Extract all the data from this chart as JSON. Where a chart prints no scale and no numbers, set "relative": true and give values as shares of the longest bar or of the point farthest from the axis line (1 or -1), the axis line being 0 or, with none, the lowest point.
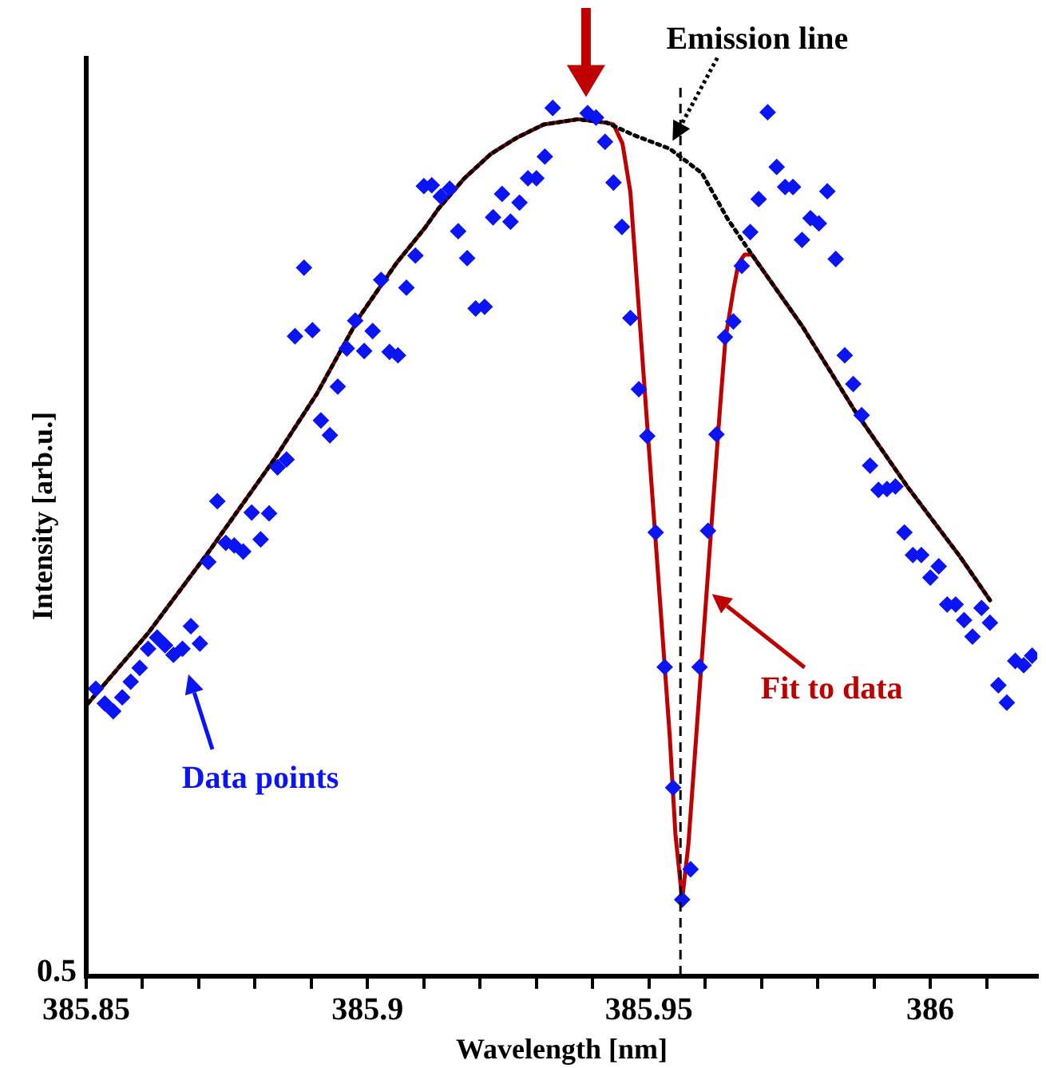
{
  "chart_data": {
    "type": "scatter",
    "xlabel": "Wavelength [nm]",
    "ylabel": "Intensity [arb.u.]",
    "relative": true,
    "xlim": [
      385.85,
      386.019
    ],
    "xticks": [
      385.85,
      {
        "value": 385.86,
        "label": null
      },
      {
        "value": 385.87,
        "label": null
      },
      {
        "value": 385.88,
        "label": null
      },
      {
        "value": 385.89,
        "label": null
      },
      385.9,
      {
        "value": 385.91,
        "label": null
      },
      {
        "value": 385.92,
        "label": null
      },
      {
        "value": 385.93,
        "label": null
      },
      {
        "value": 385.94,
        "label": null
      },
      385.95,
      {
        "value": 385.96,
        "label": null
      },
      {
        "value": 385.97,
        "label": null
      },
      {
        "value": 385.98,
        "label": null
      },
      {
        "value": 385.99,
        "label": null
      },
      386,
      {
        "value": 386.01,
        "label": null
      }
    ],
    "series": [
      {
        "color": "#0a14f5",
        "marker": "diamond",
        "x": [
          385.8517,
          385.8533,
          385.8548,
          385.8564,
          385.8579,
          385.8595,
          385.861,
          385.8626,
          385.864,
          385.8655,
          385.8671,
          385.8686,
          385.8702,
          385.8717,
          385.8733,
          385.8748,
          385.8763,
          385.8779,
          385.8794,
          385.881,
          385.8825,
          385.884,
          385.8856,
          385.8871,
          385.8887,
          385.8902,
          385.8917,
          385.8933,
          385.8947,
          385.8963,
          385.8978,
          385.8994,
          385.9009,
          385.9024,
          385.9039,
          385.9054,
          385.9069,
          385.9085,
          385.91,
          385.9114,
          385.913,
          385.9146,
          385.9161,
          385.9177,
          385.9192,
          385.9208,
          385.9223,
          385.9239,
          385.9254,
          385.927,
          385.9285,
          385.93,
          385.9315,
          385.9329,
          385.9391,
          385.9406,
          385.9422,
          385.9437,
          385.9452,
          385.9467,
          385.9482,
          385.9497,
          385.9512,
          385.9528,
          385.9543,
          385.9559,
          385.9574,
          385.959,
          385.9605,
          385.962,
          385.9635,
          385.965,
          385.9665,
          385.968,
          385.9695,
          385.9711,
          385.9727,
          385.9742,
          385.9756,
          385.9772,
          385.9787,
          385.9802,
          385.9817,
          385.9832,
          385.9848,
          385.9863,
          385.9878,
          385.9893,
          385.9908,
          385.9923,
          385.9938,
          385.9954,
          385.9969,
          385.9984,
          386.0,
          386.0015,
          386.003,
          386.0045,
          386.006,
          386.0075,
          386.0091,
          386.0106,
          386.0121,
          386.0136,
          386.0151,
          386.0166,
          386.0181
        ],
        "values": [
          0.331,
          0.314,
          0.305,
          0.321,
          0.339,
          0.355,
          0.377,
          0.39,
          0.381,
          0.37,
          0.377,
          0.403,
          0.383,
          0.477,
          0.547,
          0.499,
          0.496,
          0.489,
          0.534,
          0.503,
          0.533,
          0.586,
          0.595,
          0.737,
          0.816,
          0.744,
          0.64,
          0.623,
          0.679,
          0.723,
          0.755,
          0.72,
          0.743,
          0.802,
          0.719,
          0.715,
          0.793,
          0.83,
          0.91,
          0.911,
          0.898,
          0.907,
          0.858,
          0.827,
          0.769,
          0.771,
          0.874,
          0.901,
          0.869,
          0.891,
          0.919,
          0.919,
          0.944,
          1,
          0.994,
          0.989,
          0.961,
          0.914,
          0.863,
          0.758,
          0.676,
          0.622,
          0.511,
          0.356,
          0.217,
          0.088,
          0.123,
          0.356,
          0.513,
          0.624,
          0.736,
          0.754,
          0.818,
          0.857,
          0.895,
          0.995,
          0.932,
          0.909,
          0.909,
          0.848,
          0.873,
          0.867,
          0.904,
          0.826,
          0.715,
          0.682,
          0.646,
          0.588,
          0.56,
          0.561,
          0.564,
          0.511,
          0.485,
          0.485,
          0.459,
          0.472,
          0.428,
          0.428,
          0.41,
          0.391,
          0.424,
          0.407,
          0.335,
          0.315,
          0.363,
          0.358,
          0.369
        ]
      },
      {
        "type": "line",
        "color": "#c00000",
        "marker": "none",
        "line_style": "solid",
        "x": [
          385.8503,
          385.861,
          385.8718,
          385.8835,
          385.891,
          385.8985,
          385.9051,
          385.9102,
          385.9126,
          385.9172,
          385.9219,
          385.9266,
          385.9313,
          385.9374,
          385.9425,
          385.9437,
          385.9453,
          385.9467,
          385.9481,
          385.9495,
          385.9509,
          385.9523,
          385.9537,
          385.9547,
          385.9559,
          385.957,
          385.9584,
          385.9598,
          385.9612,
          385.9626,
          385.9636,
          385.965,
          385.9659,
          385.967,
          385.9683,
          385.9772,
          385.9865,
          385.9959,
          386.0053,
          386.0106
        ],
        "values": [
          0.314,
          0.395,
          0.489,
          0.596,
          0.671,
          0.759,
          0.821,
          0.862,
          0.884,
          0.919,
          0.947,
          0.966,
          0.981,
          0.987,
          0.983,
          0.981,
          0.959,
          0.903,
          0.778,
          0.652,
          0.527,
          0.402,
          0.276,
          0.164,
          0.088,
          0.151,
          0.276,
          0.402,
          0.527,
          0.652,
          0.734,
          0.79,
          0.821,
          0.831,
          0.831,
          0.749,
          0.652,
          0.564,
          0.483,
          0.433
        ]
      },
      {
        "type": "line",
        "color": "#000000",
        "marker": "none",
        "line_style": "dotted",
        "x": [
          385.8503,
          385.861,
          385.8718,
          385.8835,
          385.891,
          385.8985,
          385.9051,
          385.9102,
          385.9126,
          385.9172,
          385.9219,
          385.9266,
          385.9313,
          385.9374,
          385.9425,
          385.9472,
          385.9537,
          385.9594,
          385.964,
          385.9683,
          385.9772,
          385.9865,
          385.9959,
          386.0053,
          386.0106
        ],
        "values": [
          0.314,
          0.395,
          0.489,
          0.596,
          0.671,
          0.759,
          0.821,
          0.862,
          0.884,
          0.919,
          0.947,
          0.966,
          0.981,
          0.987,
          0.983,
          0.969,
          0.953,
          0.925,
          0.872,
          0.831,
          0.749,
          0.652,
          0.564,
          0.483,
          0.433
        ]
      }
    ],
    "ref_lines": [
      {
        "axis": "x",
        "value": 385.9556,
        "color": "#000000",
        "line_style": "dashed"
      }
    ],
    "annotations": [
      "Data points",
      {
        "text": "Fit to data",
        "x": 385.9612,
        "y": 0.44
      },
      {
        "text": "Emission line",
        "x": 385.9542,
        "y": 0.962
      },
      "0.5"
    ]
  }
}
